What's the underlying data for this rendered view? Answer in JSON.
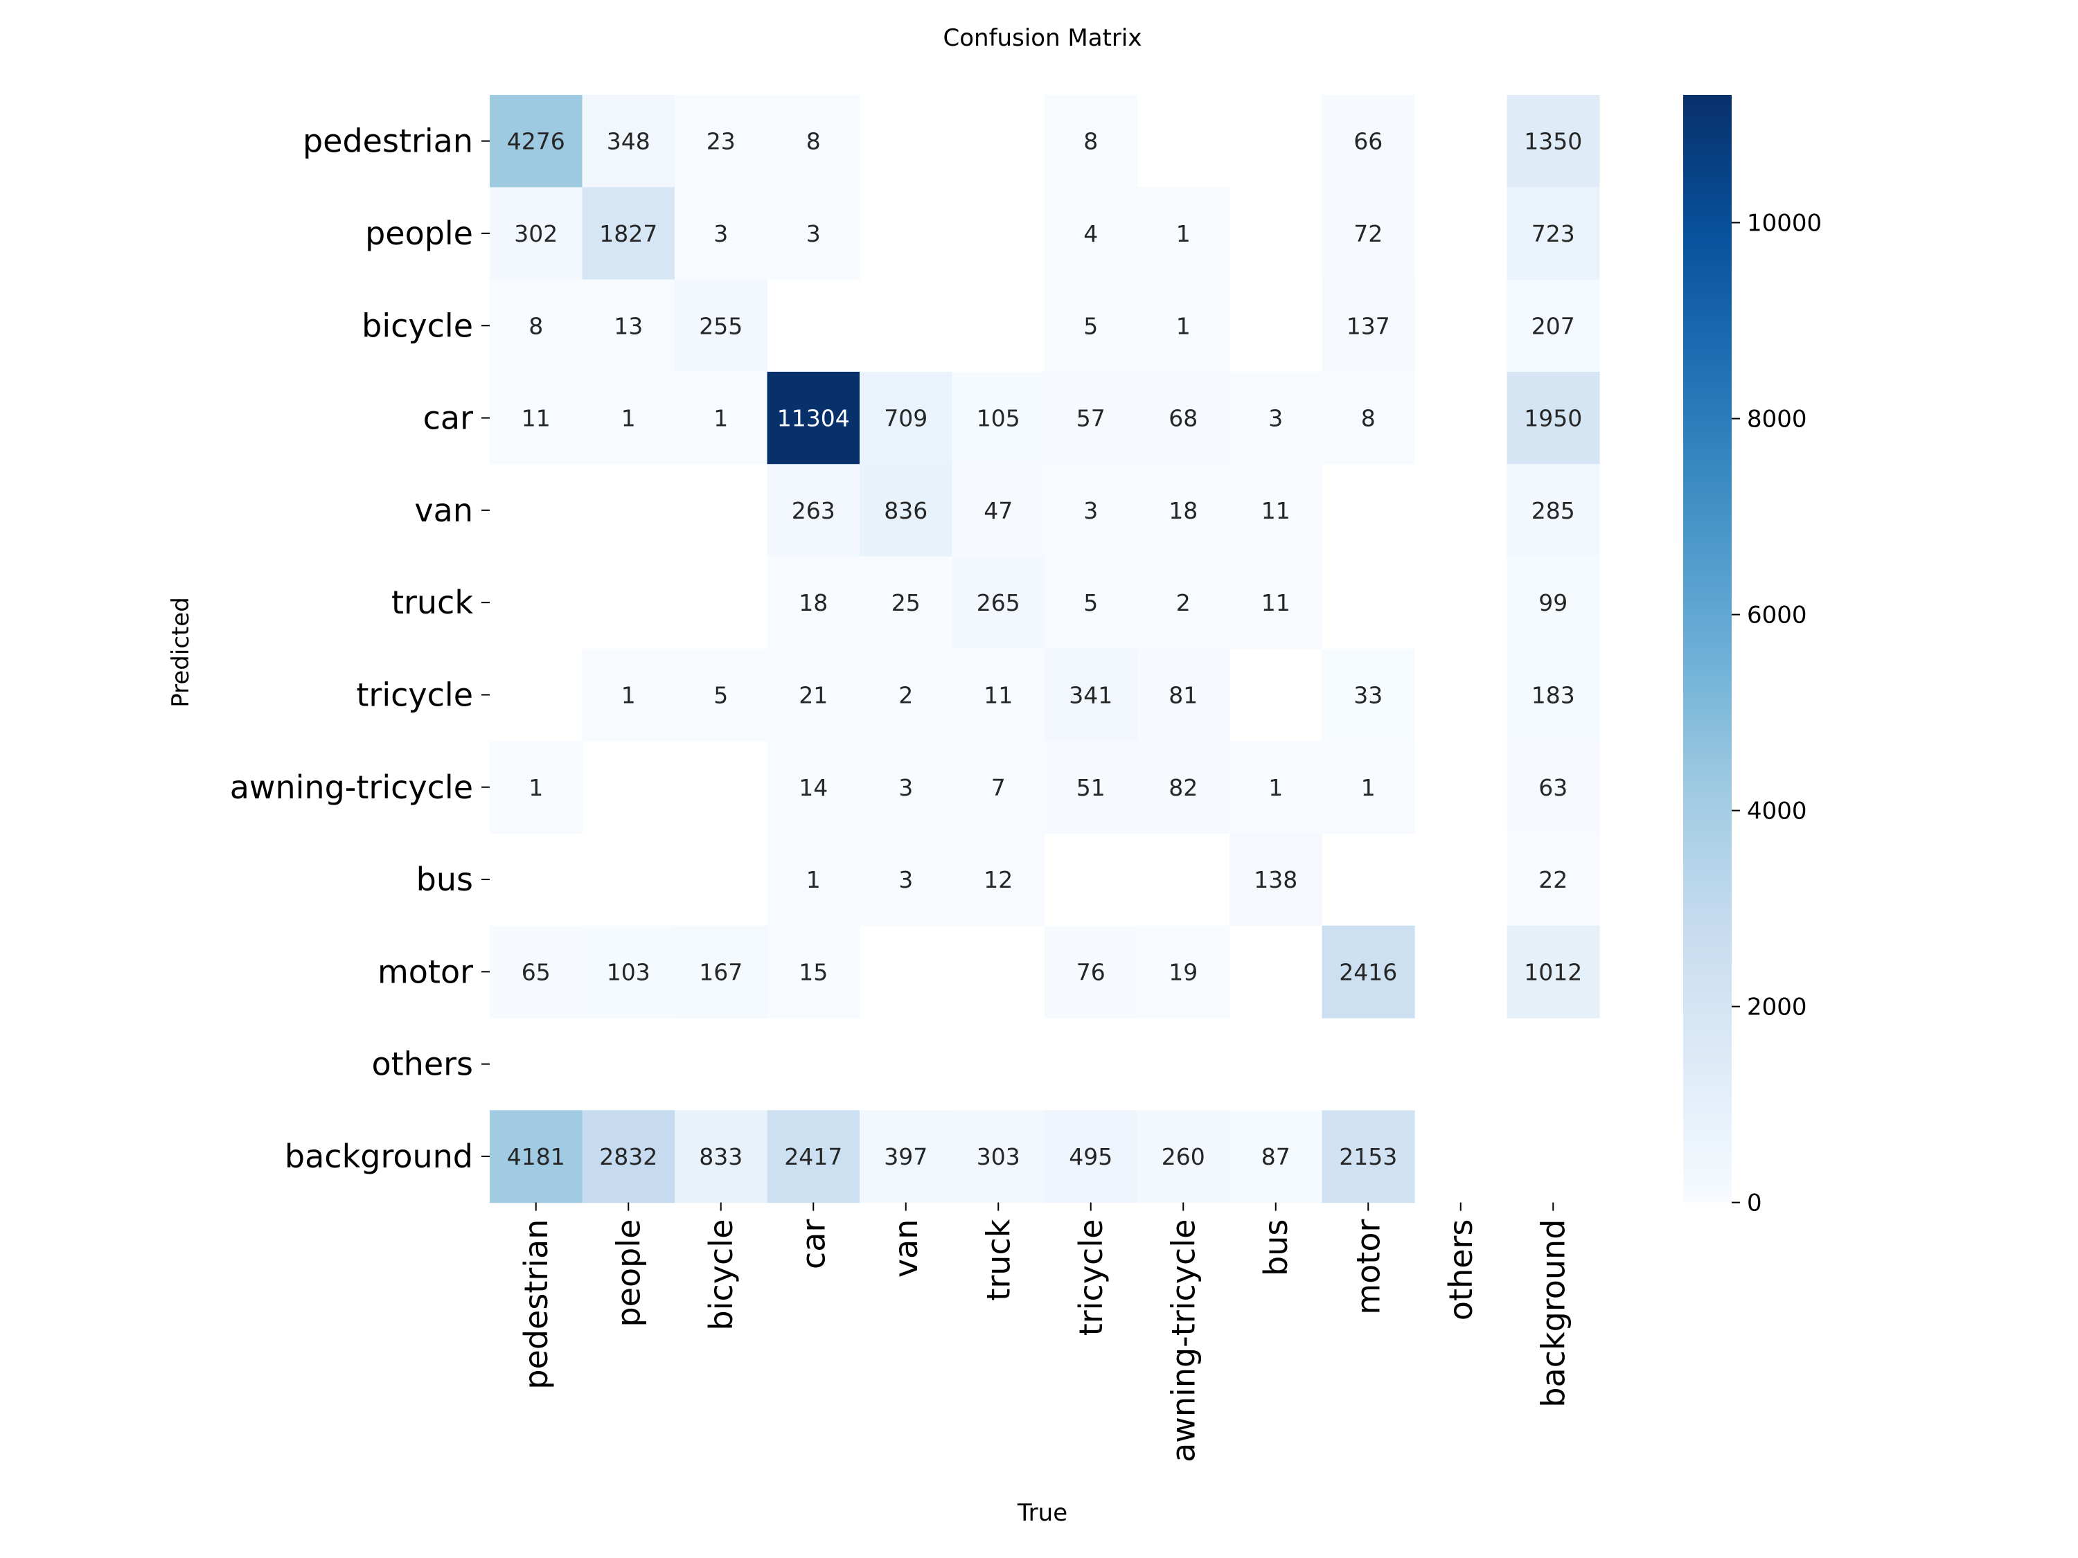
{
  "chart_data": {
    "type": "heatmap",
    "title": "Confusion Matrix",
    "xlabel": "True",
    "ylabel": "Predicted",
    "x_categories": [
      "pedestrian",
      "people",
      "bicycle",
      "car",
      "van",
      "truck",
      "tricycle",
      "awning-tricycle",
      "bus",
      "motor",
      "others",
      "background"
    ],
    "y_categories": [
      "pedestrian",
      "people",
      "bicycle",
      "car",
      "van",
      "truck",
      "tricycle",
      "awning-tricycle",
      "bus",
      "motor",
      "others",
      "background"
    ],
    "values": [
      [
        4276,
        348,
        23,
        8,
        null,
        null,
        8,
        null,
        null,
        66,
        null,
        1350
      ],
      [
        302,
        1827,
        3,
        3,
        null,
        null,
        4,
        1,
        null,
        72,
        null,
        723
      ],
      [
        8,
        13,
        255,
        null,
        null,
        null,
        5,
        1,
        null,
        137,
        null,
        207
      ],
      [
        11,
        1,
        1,
        11304,
        709,
        105,
        57,
        68,
        3,
        8,
        null,
        1950
      ],
      [
        null,
        null,
        null,
        263,
        836,
        47,
        3,
        18,
        11,
        null,
        null,
        285
      ],
      [
        null,
        null,
        null,
        18,
        25,
        265,
        5,
        2,
        11,
        null,
        null,
        99
      ],
      [
        null,
        1,
        5,
        21,
        2,
        11,
        341,
        81,
        null,
        33,
        null,
        183
      ],
      [
        1,
        null,
        null,
        14,
        3,
        7,
        51,
        82,
        1,
        1,
        null,
        63
      ],
      [
        null,
        null,
        null,
        1,
        3,
        12,
        null,
        null,
        138,
        null,
        null,
        22
      ],
      [
        65,
        103,
        167,
        15,
        null,
        null,
        76,
        19,
        null,
        2416,
        null,
        1012
      ],
      [
        null,
        null,
        null,
        null,
        null,
        null,
        null,
        null,
        null,
        null,
        null,
        null
      ],
      [
        4181,
        2832,
        833,
        2417,
        397,
        303,
        495,
        260,
        87,
        2153,
        null,
        null
      ]
    ],
    "colorbar": {
      "min": 0,
      "max": 11304,
      "ticks": [
        0,
        2000,
        4000,
        6000,
        8000,
        10000
      ]
    },
    "colormap": "Blues",
    "colormap_stops": [
      "#f7fbff",
      "#deebf7",
      "#c6dbef",
      "#9ecae1",
      "#6baed6",
      "#4292c6",
      "#2171b5",
      "#08519c",
      "#08306b"
    ],
    "grid": false
  }
}
